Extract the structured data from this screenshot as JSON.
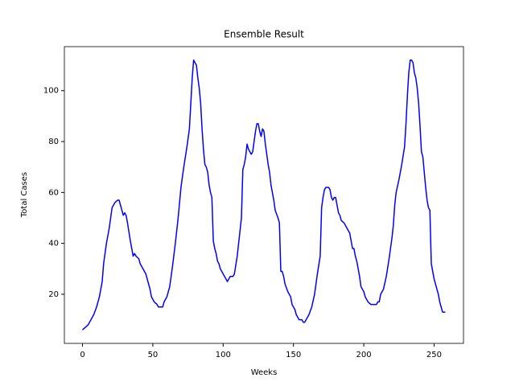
{
  "chart_data": {
    "type": "line",
    "title": "Ensemble Result",
    "xlabel": "Weeks",
    "ylabel": "Total Cases",
    "x": [
      0,
      2,
      4,
      6,
      8,
      10,
      12,
      14,
      15,
      17,
      19,
      20,
      21,
      23,
      25,
      26,
      27,
      28,
      29,
      30,
      31,
      32,
      34,
      35,
      36,
      37,
      38,
      40,
      41,
      43,
      45,
      47,
      48,
      49,
      51,
      53,
      54,
      57,
      58,
      60,
      62,
      64,
      66,
      68,
      70,
      72,
      74,
      76,
      77,
      78,
      79,
      80,
      81,
      82,
      83,
      84,
      85,
      86,
      87,
      88,
      89,
      90,
      91,
      92,
      93,
      94,
      95,
      96,
      97,
      98,
      100,
      102,
      103,
      104,
      105,
      107,
      108,
      110,
      112,
      113,
      114,
      115,
      116,
      117,
      118,
      119,
      120,
      121,
      122,
      123,
      124,
      125,
      126,
      127,
      128,
      129,
      130,
      132,
      133,
      134,
      136,
      137,
      139,
      140,
      141,
      142,
      143,
      144,
      146,
      148,
      149,
      151,
      152,
      153,
      154,
      156,
      157,
      158,
      159,
      160,
      161,
      163,
      165,
      167,
      169,
      170,
      171,
      172,
      173,
      175,
      176,
      177,
      178,
      179,
      180,
      181,
      182,
      183,
      184,
      186,
      188,
      190,
      191,
      192,
      193,
      194,
      195,
      196,
      197,
      198,
      200,
      201,
      202,
      203,
      205,
      207,
      209,
      210,
      211,
      212,
      213,
      214,
      216,
      218,
      220,
      221,
      222,
      223,
      225,
      227,
      229,
      230,
      231,
      232,
      233,
      234,
      235,
      236,
      237,
      238,
      239,
      240,
      241,
      242,
      243,
      244,
      245,
      246,
      247,
      248,
      249,
      250,
      252,
      253,
      254,
      255,
      256,
      257,
      258
    ],
    "series": [
      {
        "name": "Ensemble",
        "color": "#0000ff",
        "values": [
          6,
          7,
          8,
          10,
          12,
          15,
          19,
          25,
          32,
          40,
          46,
          50,
          54,
          56,
          57,
          57,
          55,
          53,
          51,
          52,
          51,
          48,
          41,
          38,
          35,
          36,
          35,
          34,
          32,
          30,
          28,
          24,
          22,
          19,
          17,
          16,
          15,
          15,
          17,
          19,
          23,
          31,
          40,
          50,
          62,
          70,
          77,
          85,
          95,
          105,
          112,
          111,
          110,
          105,
          101,
          95,
          85,
          77,
          71,
          70,
          68,
          63,
          60,
          58,
          41,
          38,
          36,
          33,
          32,
          30,
          28,
          26,
          25,
          26,
          27,
          27,
          28,
          35,
          45,
          50,
          69,
          71,
          74,
          79,
          77,
          76,
          75,
          76,
          80,
          84,
          87,
          87,
          84,
          82,
          85,
          84,
          79,
          71,
          68,
          63,
          57,
          53,
          50,
          48,
          29,
          29,
          27,
          24,
          21,
          19,
          16,
          14,
          12,
          11,
          10,
          10,
          9,
          9,
          10,
          11,
          12,
          15,
          20,
          28,
          35,
          54,
          58,
          61,
          62,
          62,
          61,
          58,
          57,
          58,
          58,
          55,
          52,
          51,
          49,
          48,
          46,
          44,
          41,
          38,
          38,
          35,
          33,
          30,
          27,
          23,
          21,
          19,
          18,
          17,
          16,
          16,
          16,
          17,
          17,
          20,
          21,
          22,
          27,
          34,
          42,
          47,
          55,
          60,
          65,
          71,
          78,
          87,
          98,
          107,
          112,
          112,
          111,
          107,
          105,
          101,
          95,
          86,
          76,
          74,
          68,
          62,
          57,
          54,
          53,
          32,
          29,
          26,
          22,
          20,
          17,
          15,
          13,
          13,
          13
        ]
      }
    ],
    "xlim": [
      -12.9,
      270.9
    ],
    "ylim": [
      0.7,
      117.3
    ],
    "xticks": [
      0,
      50,
      100,
      150,
      200,
      250
    ],
    "yticks": [
      20,
      40,
      60,
      80,
      100
    ]
  }
}
